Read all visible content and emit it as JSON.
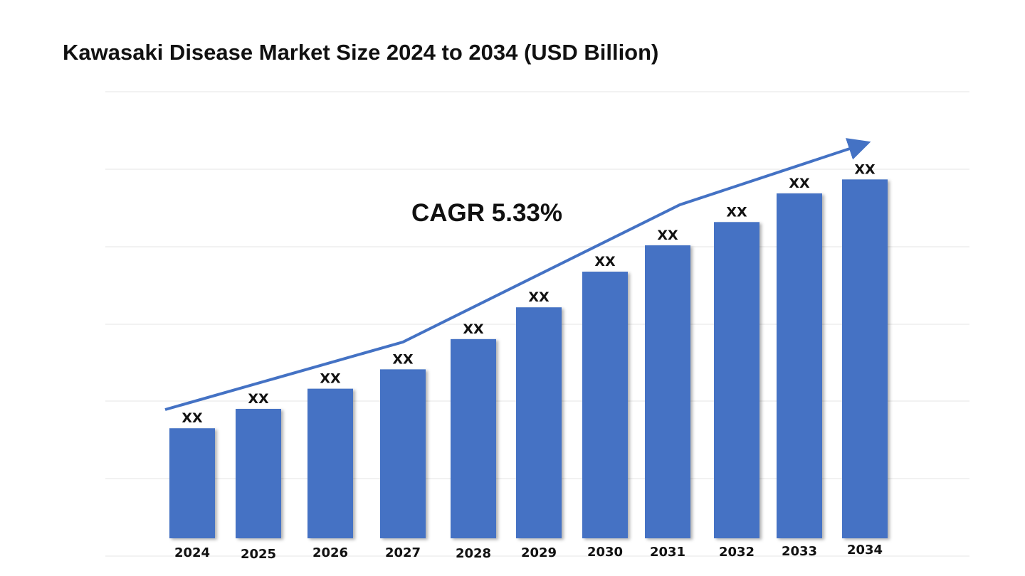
{
  "chart_data": {
    "type": "bar",
    "title": "Kawasaki Disease Market Size 2024 to 2034 (USD Billion)",
    "xlabel": "",
    "ylabel": "",
    "categories": [
      "2024",
      "2025",
      "2026",
      "2027",
      "2028",
      "2029",
      "2030",
      "2031",
      "2032",
      "2033",
      "2034"
    ],
    "values": [
      1.42,
      1.67,
      1.93,
      2.18,
      2.57,
      2.98,
      3.44,
      3.78,
      4.08,
      4.45,
      4.63
    ],
    "value_note_units": "relative (no axis scale printed)",
    "data_labels": [
      "XX",
      "XX",
      "XX",
      "XX",
      "XX",
      "XX",
      "XX",
      "XX",
      "XX",
      "XX",
      "XX"
    ],
    "annotation": "CAGR 5.33%",
    "grid": true,
    "y_axis_labels_shown": false,
    "bar_color": "#4472C4",
    "arrow_color": "#4472C4"
  }
}
